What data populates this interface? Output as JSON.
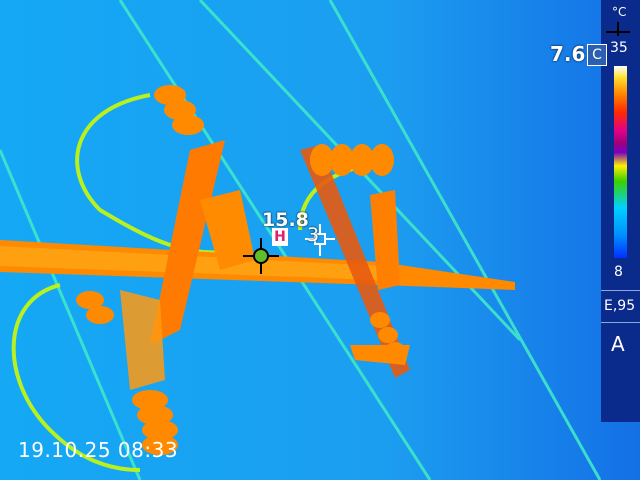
{
  "overlay": {
    "spot_temperature": "7.6",
    "spot_indicator": "C",
    "unit": "°C",
    "scale_max": "35",
    "scale_min": "8",
    "emissivity": "E,95",
    "mode": "A",
    "timestamp": "19.10.25 08:33",
    "hotspot_value": "15.8",
    "hotspot_badge": "H",
    "cursor_value": "3"
  },
  "colors": {
    "background": "#1aa6f2",
    "hot": "#ff6a00",
    "warm": "#ffb000",
    "wire": "#39e07a",
    "scale_panel": "#0a2a8c"
  },
  "icons": [
    "crosshair-icon",
    "hotspot-crosshair-icon",
    "cursor-crosshair-icon"
  ]
}
